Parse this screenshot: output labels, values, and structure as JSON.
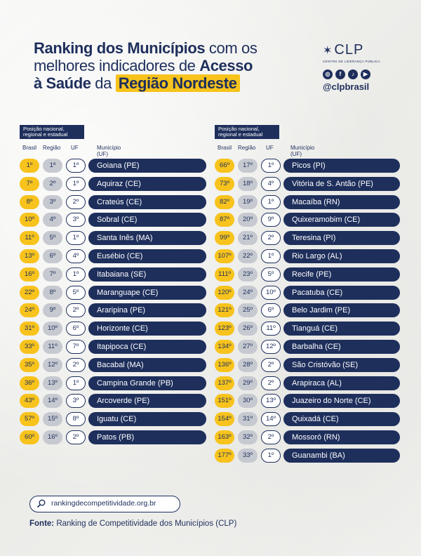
{
  "title": {
    "p1": "Ranking dos Municípios",
    "p2": " com os",
    "p3": "melhores indicadores de ",
    "p4": "Acesso",
    "p5": "à Saúde",
    "p6": " da ",
    "p7": "Região Nordeste"
  },
  "brand": {
    "logo_text": "CLP",
    "subtitle": "CENTRO DE LIDERANÇA PÚBLICA",
    "handle": "@clpbrasil",
    "socials": [
      "instagram-icon",
      "facebook-icon",
      "tiktok-icon",
      "youtube-icon"
    ]
  },
  "columns": {
    "position_label": "Posição nacional, regional e estadual",
    "brasil": "Brasil",
    "regiao": "Região",
    "uf": "UF",
    "municipio": "Município (UF)"
  },
  "left_rows": [
    {
      "br": "1º",
      "rg": "1º",
      "uf": "1º",
      "mun": "Goiana (PE)"
    },
    {
      "br": "7º",
      "rg": "2º",
      "uf": "1º",
      "mun": "Aquiraz (CE)"
    },
    {
      "br": "8º",
      "rg": "3º",
      "uf": "2º",
      "mun": "Crateús (CE)"
    },
    {
      "br": "10º",
      "rg": "4º",
      "uf": "3º",
      "mun": "Sobral (CE)"
    },
    {
      "br": "11º",
      "rg": "5º",
      "uf": "1º",
      "mun": "Santa Inês (MA)"
    },
    {
      "br": "13º",
      "rg": "6º",
      "uf": "4º",
      "mun": "Eusébio (CE)"
    },
    {
      "br": "16º",
      "rg": "7º",
      "uf": "1º",
      "mun": "Itabaiana (SE)"
    },
    {
      "br": "22º",
      "rg": "8º",
      "uf": "5º",
      "mun": "Maranguape (CE)"
    },
    {
      "br": "24º",
      "rg": "9º",
      "uf": "2º",
      "mun": "Araripina (PE)"
    },
    {
      "br": "31º",
      "rg": "10º",
      "uf": "6º",
      "mun": "Horizonte (CE)"
    },
    {
      "br": "33º",
      "rg": "11º",
      "uf": "7º",
      "mun": "Itapipoca (CE)"
    },
    {
      "br": "35º",
      "rg": "12º",
      "uf": "2º",
      "mun": "Bacabal (MA)"
    },
    {
      "br": "36º",
      "rg": "13º",
      "uf": "1º",
      "mun": "Campina Grande (PB)"
    },
    {
      "br": "43º",
      "rg": "14º",
      "uf": "3º",
      "mun": "Arcoverde (PE)"
    },
    {
      "br": "57º",
      "rg": "15º",
      "uf": "8º",
      "mun": "Iguatu (CE)"
    },
    {
      "br": "60º",
      "rg": "16º",
      "uf": "2º",
      "mun": "Patos (PB)"
    }
  ],
  "right_rows": [
    {
      "br": "66º",
      "rg": "17º",
      "uf": "1º",
      "mun": "Picos (PI)"
    },
    {
      "br": "73º",
      "rg": "18º",
      "uf": "4º",
      "mun": "Vitória de S. Antão (PE)"
    },
    {
      "br": "82º",
      "rg": "19º",
      "uf": "1º",
      "mun": "Macaíba (RN)"
    },
    {
      "br": "87º",
      "rg": "20º",
      "uf": "9º",
      "mun": "Quixeramobim (CE)"
    },
    {
      "br": "99º",
      "rg": "21º",
      "uf": "2º",
      "mun": "Teresina (PI)"
    },
    {
      "br": "107º",
      "rg": "22º",
      "uf": "1º",
      "mun": "Rio Largo (AL)"
    },
    {
      "br": "111º",
      "rg": "23º",
      "uf": "5º",
      "mun": "Recife (PE)"
    },
    {
      "br": "120º",
      "rg": "24º",
      "uf": "10º",
      "mun": "Pacatuba (CE)"
    },
    {
      "br": "121º",
      "rg": "25º",
      "uf": "6º",
      "mun": "Belo Jardim (PE)"
    },
    {
      "br": "123º",
      "rg": "26º",
      "uf": "11º",
      "mun": "Tianguá (CE)"
    },
    {
      "br": "134º",
      "rg": "27º",
      "uf": "12º",
      "mun": "Barbalha (CE)"
    },
    {
      "br": "136º",
      "rg": "28º",
      "uf": "2º",
      "mun": "São Cristóvão (SE)"
    },
    {
      "br": "137º",
      "rg": "29º",
      "uf": "2º",
      "mun": "Arapiraca (AL)"
    },
    {
      "br": "151º",
      "rg": "30º",
      "uf": "13º",
      "mun": "Juazeiro do Norte (CE)"
    },
    {
      "br": "154º",
      "rg": "31º",
      "uf": "14º",
      "mun": "Quixadá (CE)"
    },
    {
      "br": "163º",
      "rg": "32º",
      "uf": "2º",
      "mun": "Mossoró (RN)"
    },
    {
      "br": "177º",
      "rg": "33º",
      "uf": "1º",
      "mun": "Guanambi (BA)"
    }
  ],
  "footer": {
    "url": "rankingdecompetitividade.org.br",
    "source_label": "Fonte:",
    "source_text": " Ranking de Competitividade dos Municípios (CLP)"
  }
}
